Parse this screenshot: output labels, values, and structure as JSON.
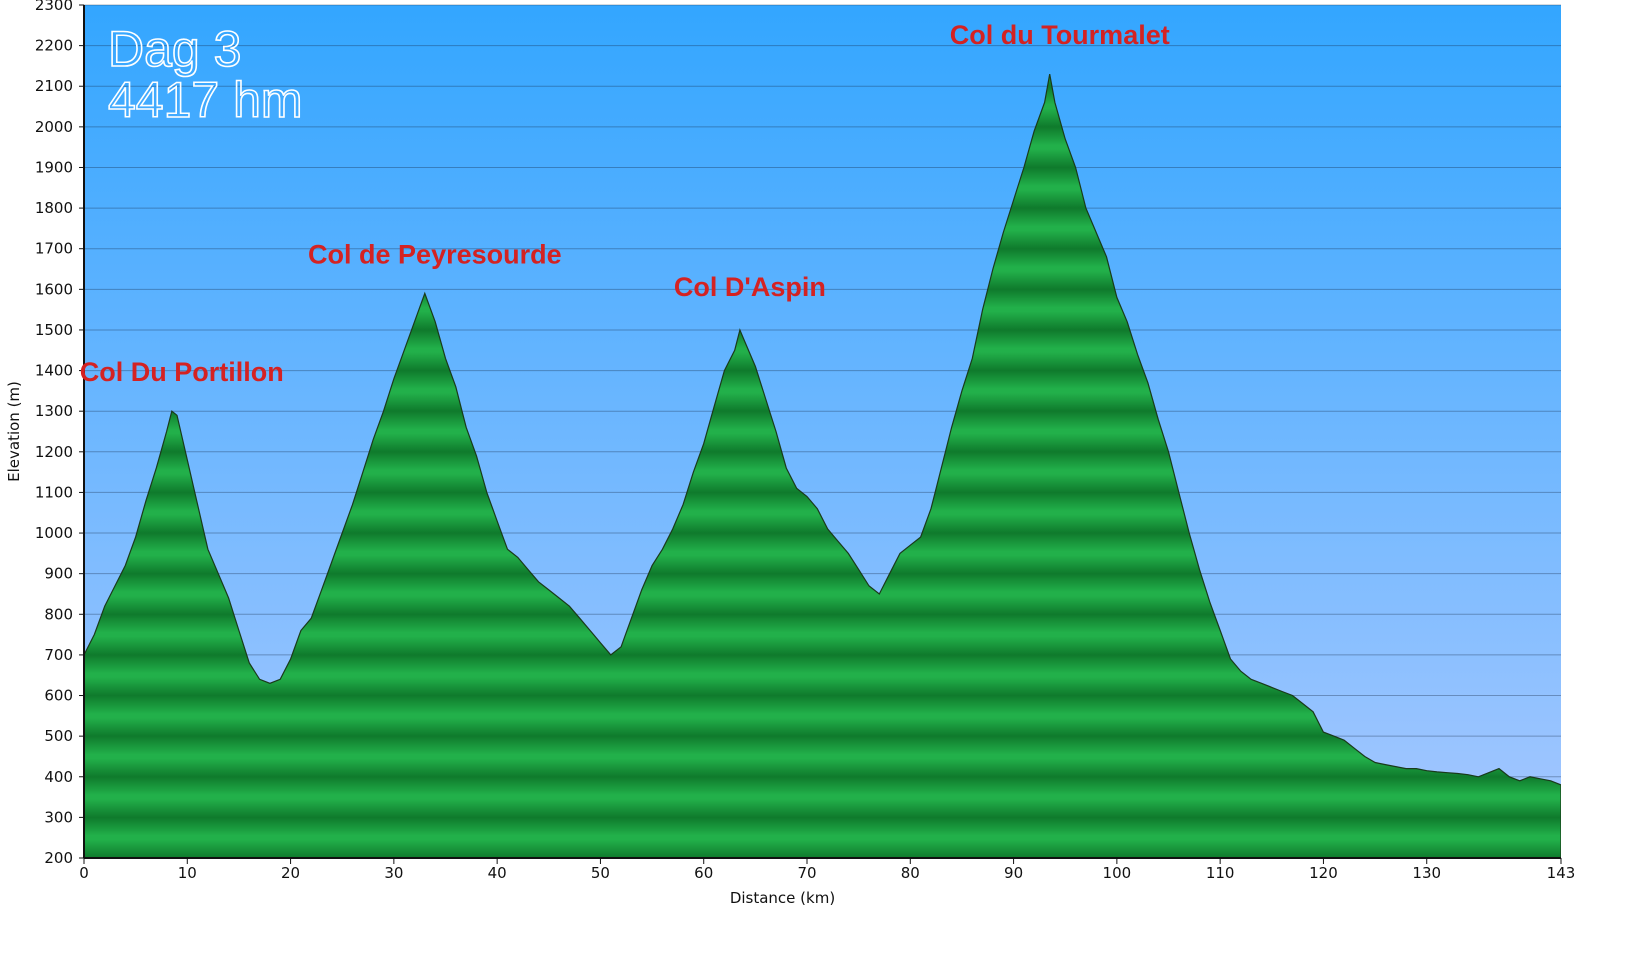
{
  "overlay": {
    "line1": "Dag 3",
    "line2": "4417 hm"
  },
  "colors": {
    "sky_top": "#33a6ff",
    "sky_bottom": "#a8c8ff",
    "fill_light": "#22b04a",
    "fill_dark": "#0f7a2c",
    "label_red": "#d42222",
    "outline": "#1a3a1a"
  },
  "chart_data": {
    "type": "area",
    "title": "",
    "xlabel": "Distance (km)",
    "ylabel": "Elevation (m)",
    "xlim": [
      0,
      143
    ],
    "ylim": [
      200,
      2300
    ],
    "grid": true,
    "x_ticks": [
      0,
      10,
      20,
      30,
      40,
      50,
      60,
      70,
      80,
      90,
      100,
      110,
      120,
      130,
      143
    ],
    "y_ticks": [
      200,
      300,
      400,
      500,
      600,
      700,
      800,
      900,
      1000,
      1100,
      1200,
      1300,
      1400,
      1500,
      1600,
      1700,
      1800,
      1900,
      2000,
      2100,
      2200,
      2300
    ],
    "annotations": [
      {
        "text": "Col Du Portillon",
        "x": 8.5,
        "y": 1300
      },
      {
        "text": "Col de Peyresourde",
        "x": 33,
        "y": 1590
      },
      {
        "text": "Col D'Aspin",
        "x": 63.5,
        "y": 1510
      },
      {
        "text": "Col du Tourmalet",
        "x": 93.5,
        "y": 2130
      }
    ],
    "x": [
      0,
      1,
      2,
      3,
      4,
      5,
      6,
      7,
      8,
      8.5,
      9,
      10,
      11,
      12,
      13,
      14,
      15,
      16,
      17,
      18,
      19,
      20,
      21,
      22,
      23,
      24,
      25,
      26,
      27,
      28,
      29,
      30,
      31,
      32,
      33,
      34,
      35,
      36,
      37,
      38,
      39,
      40,
      41,
      42,
      43,
      44,
      45,
      46,
      47,
      48,
      49,
      50,
      51,
      52,
      53,
      54,
      55,
      56,
      57,
      58,
      59,
      60,
      61,
      62,
      63,
      63.5,
      64,
      65,
      66,
      67,
      68,
      69,
      70,
      71,
      72,
      73,
      74,
      75,
      76,
      77,
      78,
      79,
      80,
      81,
      82,
      83,
      84,
      85,
      86,
      87,
      88,
      89,
      90,
      91,
      92,
      93,
      93.5,
      94,
      95,
      96,
      97,
      98,
      99,
      100,
      101,
      102,
      103,
      104,
      105,
      106,
      107,
      108,
      109,
      110,
      111,
      112,
      113,
      114,
      115,
      116,
      117,
      118,
      119,
      120,
      121,
      122,
      123,
      124,
      125,
      126,
      127,
      128,
      129,
      130,
      131,
      132,
      133,
      134,
      135,
      136,
      137,
      138,
      139,
      140,
      141,
      142,
      143
    ],
    "y": [
      700,
      750,
      820,
      870,
      920,
      990,
      1080,
      1160,
      1250,
      1300,
      1290,
      1180,
      1070,
      960,
      900,
      840,
      760,
      680,
      640,
      630,
      640,
      690,
      760,
      790,
      860,
      930,
      1000,
      1070,
      1150,
      1230,
      1300,
      1380,
      1450,
      1520,
      1590,
      1520,
      1430,
      1360,
      1260,
      1190,
      1100,
      1030,
      960,
      940,
      910,
      880,
      860,
      840,
      820,
      790,
      760,
      730,
      700,
      720,
      790,
      860,
      920,
      960,
      1010,
      1070,
      1150,
      1220,
      1310,
      1400,
      1450,
      1500,
      1470,
      1410,
      1330,
      1250,
      1160,
      1110,
      1090,
      1060,
      1010,
      980,
      950,
      910,
      870,
      850,
      900,
      950,
      970,
      990,
      1060,
      1160,
      1260,
      1350,
      1430,
      1550,
      1650,
      1740,
      1820,
      1900,
      1990,
      2060,
      2130,
      2060,
      1970,
      1900,
      1800,
      1740,
      1680,
      1580,
      1520,
      1440,
      1370,
      1280,
      1200,
      1100,
      1000,
      910,
      830,
      760,
      690,
      660,
      640,
      630,
      620,
      610,
      600,
      580,
      560,
      510,
      500,
      490,
      470,
      450,
      435,
      430,
      425,
      420,
      420,
      415,
      412,
      410,
      408,
      405,
      400,
      410,
      420,
      400,
      390,
      400,
      395,
      390,
      380
    ]
  }
}
